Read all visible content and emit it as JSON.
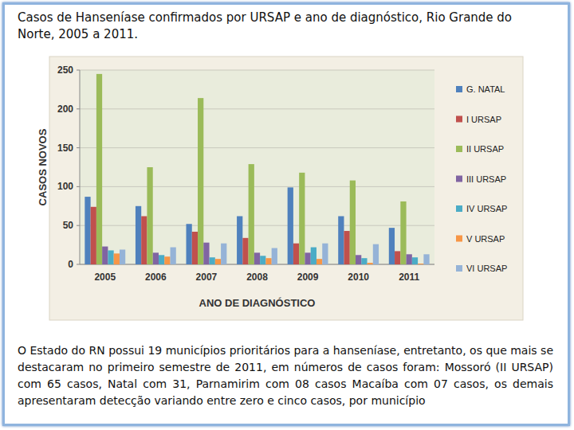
{
  "chart_data": {
    "type": "bar",
    "title": "Casos de Hanseníase confirmados por URSAP e ano de diagnóstico, Rio Grande do Norte, 2005 a 2011.",
    "x_label": "ANO DE DIAGNÓSTICO",
    "y_label": "CASOS NOVOS",
    "annotations": [
      "O Estado do RN possui 19 municípios prioritários para a hanseníase, entretanto, os que mais se destacaram no primeiro semestre de 2011, em números de casos foram: Mossoró (II URSAP) com 65 casos, Natal com 31, Parnamirim com 08 casos Macaíba com 07 casos, os demais apresentaram detecção variando entre zero e cinco casos, por município"
    ],
    "categories": [
      "2005",
      "2006",
      "2007",
      "2008",
      "2009",
      "2010",
      "2011"
    ],
    "series": [
      {
        "name": "G. NATAL",
        "color": "#4f81bd",
        "values": [
          87,
          75,
          52,
          62,
          99,
          62,
          47
        ]
      },
      {
        "name": "I URSAP",
        "color": "#c0504d",
        "values": [
          74,
          62,
          42,
          34,
          27,
          43,
          17
        ]
      },
      {
        "name": "II URSAP",
        "color": "#9bbb59",
        "values": [
          245,
          125,
          214,
          129,
          118,
          108,
          81
        ]
      },
      {
        "name": "III URSAP",
        "color": "#8064a2",
        "values": [
          23,
          15,
          28,
          15,
          15,
          12,
          13
        ]
      },
      {
        "name": "IV URSAP",
        "color": "#4bacc6",
        "values": [
          18,
          12,
          9,
          11,
          22,
          8,
          9
        ]
      },
      {
        "name": "V URSAP",
        "color": "#f79646",
        "values": [
          14,
          10,
          7,
          8,
          7,
          2,
          1
        ]
      },
      {
        "name": "VI URSAP",
        "color": "#95b3d7",
        "values": [
          19,
          22,
          27,
          21,
          27,
          26,
          13
        ]
      }
    ],
    "ylim": [
      0,
      250
    ],
    "yticks": [
      0,
      50,
      100,
      150,
      200,
      250
    ],
    "grid": true,
    "legend": "right"
  }
}
